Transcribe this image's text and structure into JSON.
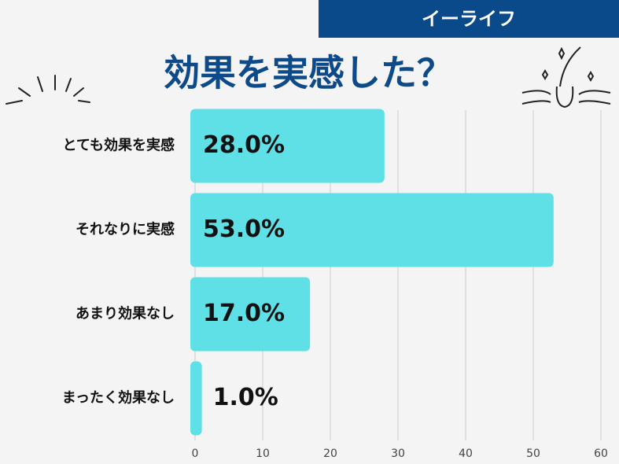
{
  "brand": "イーライフ",
  "chart_data": {
    "type": "bar",
    "orientation": "horizontal",
    "title": "効果を実感した？",
    "categories": [
      "とても効果を実感",
      "それなりに実感",
      "あまり効果なし",
      "まったく効果なし"
    ],
    "values": [
      28,
      53,
      17,
      1
    ],
    "value_labels": [
      "28.0%",
      "53.0%",
      "17.0%",
      "1.0%"
    ],
    "color": "#5ee0e6",
    "xlim": [
      0,
      60
    ],
    "xticks": [
      0,
      10,
      20,
      30,
      40,
      50,
      60
    ],
    "grid": true
  }
}
